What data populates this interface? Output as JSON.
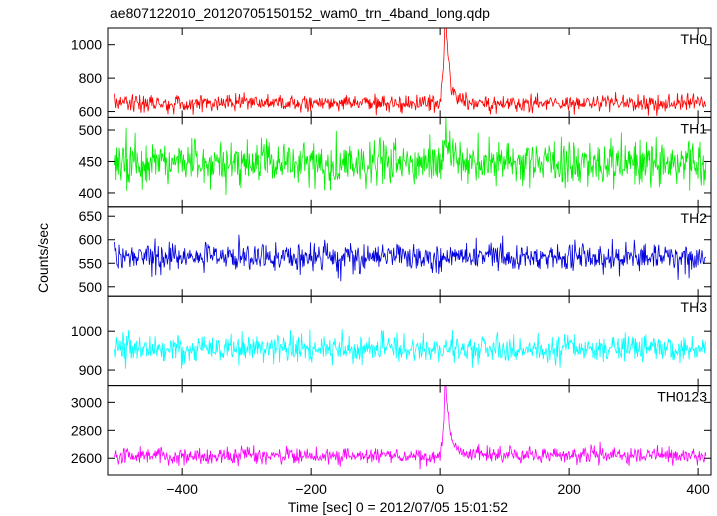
{
  "chart_data": {
    "type": "line",
    "title": "ae807122010_20120705150152_wam0_trn_4band_long.qdp",
    "xlabel": "Time [sec] 0 = 2012/07/05 15:01:52",
    "ylabel": "Counts/sec",
    "xlim": [
      -515,
      420
    ],
    "xticks": [
      -400,
      -200,
      0,
      200,
      400
    ],
    "xtick_labels": [
      "−400",
      "−200",
      "0",
      "200",
      "400"
    ],
    "grid": false,
    "x_step_sec": 1,
    "panels": [
      {
        "name": "TH0",
        "color": "#ff0000",
        "ylim": [
          565,
          1100
        ],
        "yticks": [
          600,
          800,
          1000
        ],
        "ytick_labels": [
          "600",
          "800",
          "1000"
        ],
        "baseline": 650,
        "noise": 45,
        "burst": {
          "t0": 8,
          "rise": 8,
          "decay": 4,
          "peak": 500,
          "shoulder": 150,
          "shoulder_decay": 12
        }
      },
      {
        "name": "TH1",
        "color": "#00ee00",
        "ylim": [
          378,
          520
        ],
        "yticks": [
          400,
          450,
          500
        ],
        "ytick_labels": [
          "400",
          "450",
          "500"
        ],
        "baseline": 447,
        "noise": 32,
        "burst": {
          "t0": 8,
          "rise": 8,
          "decay": 6,
          "peak": 45,
          "shoulder": 10,
          "shoulder_decay": 15
        }
      },
      {
        "name": "TH2",
        "color": "#0000dd",
        "ylim": [
          480,
          670
        ],
        "yticks": [
          500,
          550,
          600,
          650
        ],
        "ytick_labels": [
          "500",
          "550",
          "600",
          "650"
        ],
        "baseline": 563,
        "noise": 28,
        "burst": null
      },
      {
        "name": "TH3",
        "color": "#00ffff",
        "ylim": [
          860,
          1090
        ],
        "yticks": [
          900,
          1000
        ],
        "ytick_labels": [
          "900",
          "1000"
        ],
        "baseline": 955,
        "noise": 32,
        "burst": null
      },
      {
        "name": "TH0123",
        "color": "#ff00ff",
        "ylim": [
          2480,
          3120
        ],
        "yticks": [
          2600,
          2800,
          3000
        ],
        "ytick_labels": [
          "2600",
          "2800",
          "3000"
        ],
        "baseline": 2620,
        "noise": 55,
        "burst": {
          "t0": 8,
          "rise": 8,
          "decay": 5,
          "peak": 450,
          "shoulder": 140,
          "shoulder_decay": 12
        }
      }
    ]
  }
}
